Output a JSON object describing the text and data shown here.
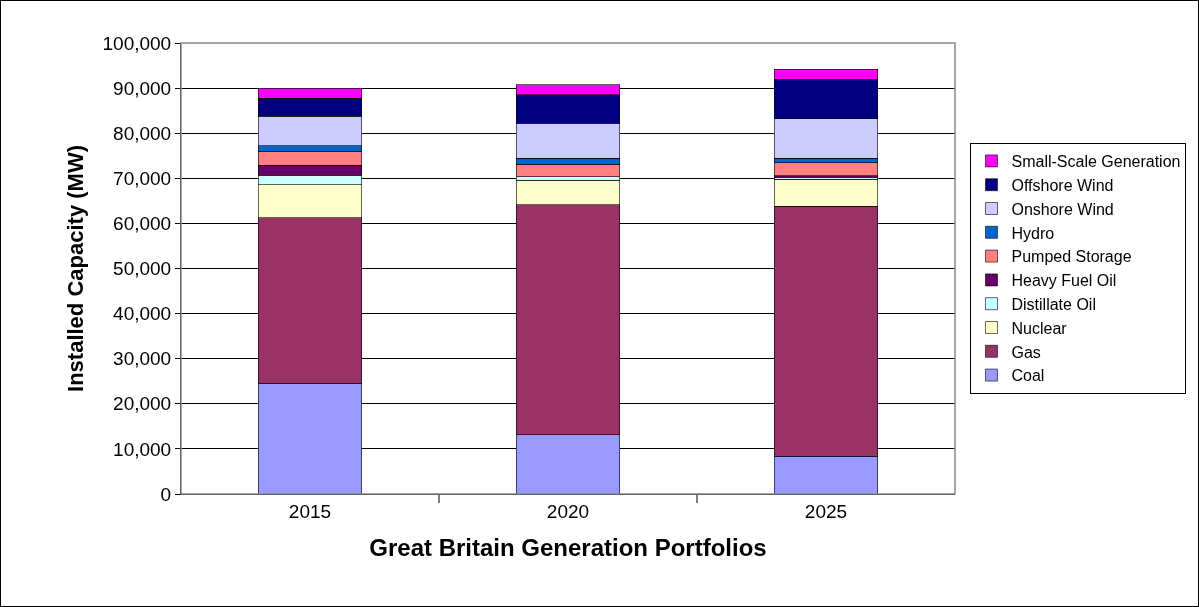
{
  "chart_data": {
    "type": "bar",
    "stacked": true,
    "xlabel": "Great Britain Generation Portfolios",
    "ylabel": "Installed Capacity (MW)",
    "categories": [
      "2015",
      "2020",
      "2025"
    ],
    "ylim": [
      0,
      100000
    ],
    "yticks": [
      {
        "value": 0,
        "label": "0"
      },
      {
        "value": 10000,
        "label": "10,000"
      },
      {
        "value": 20000,
        "label": "20,000"
      },
      {
        "value": 30000,
        "label": "30,000"
      },
      {
        "value": 40000,
        "label": "40,000"
      },
      {
        "value": 50000,
        "label": "50,000"
      },
      {
        "value": 60000,
        "label": "60,000"
      },
      {
        "value": 70000,
        "label": "70,000"
      },
      {
        "value": 80000,
        "label": "80,000"
      },
      {
        "value": 90000,
        "label": "90,000"
      },
      {
        "value": 100000,
        "label": "100,000"
      }
    ],
    "grid": "y",
    "legend": "right",
    "series": [
      {
        "name": "Coal",
        "color": "#9999ff",
        "values": [
          24600,
          13100,
          8400
        ]
      },
      {
        "name": "Gas",
        "color": "#993366",
        "values": [
          36600,
          51000,
          55400
        ]
      },
      {
        "name": "Nuclear",
        "color": "#ffffcc",
        "values": [
          7400,
          5500,
          6000
        ]
      },
      {
        "name": "Distillate Oil",
        "color": "#ccffff",
        "values": [
          2100,
          700,
          400
        ]
      },
      {
        "name": "Heavy Fuel Oil",
        "color": "#660066",
        "values": [
          2200,
          0,
          400
        ]
      },
      {
        "name": "Pumped Storage",
        "color": "#ff8080",
        "values": [
          3000,
          2800,
          2900
        ]
      },
      {
        "name": "Hydro",
        "color": "#0066cc",
        "values": [
          1300,
          1300,
          1000
        ]
      },
      {
        "name": "Onshore Wind",
        "color": "#ccccff",
        "values": [
          6600,
          7800,
          8700
        ]
      },
      {
        "name": "Offshore Wind",
        "color": "#000080",
        "values": [
          4000,
          6300,
          8800
        ]
      },
      {
        "name": "Small-Scale Generation",
        "color": "#ff00ff",
        "values": [
          2200,
          2200,
          2200
        ]
      }
    ]
  }
}
